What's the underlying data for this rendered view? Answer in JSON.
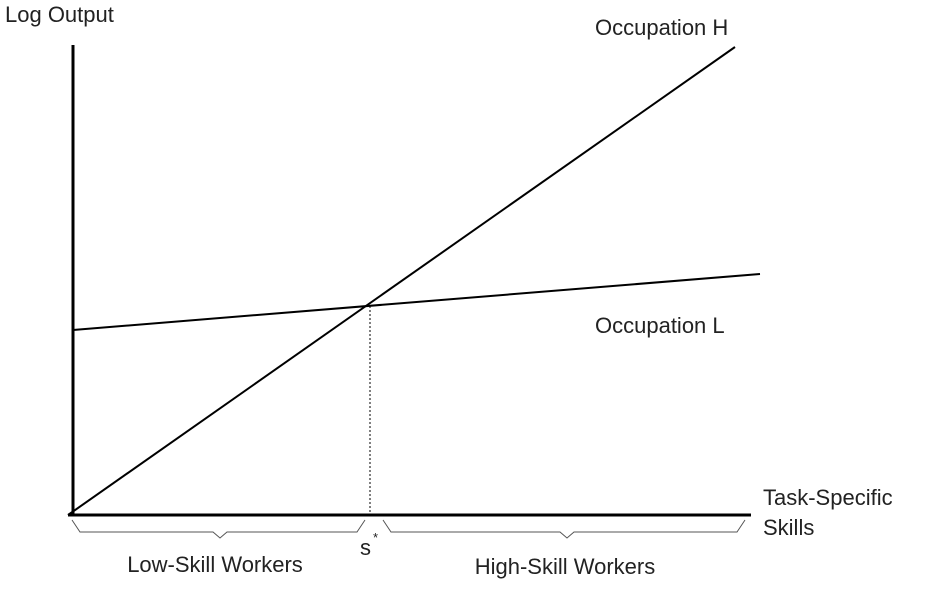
{
  "y_axis_label": "Log Output",
  "x_axis_label": [
    "Task-Specific",
    "Skills"
  ],
  "lines": [
    {
      "label": "Occupation H"
    },
    {
      "label": "Occupation L"
    }
  ],
  "threshold": {
    "base": "s",
    "sup": "*"
  },
  "groups": [
    "Low-Skill Workers",
    "High-Skill Workers"
  ]
}
